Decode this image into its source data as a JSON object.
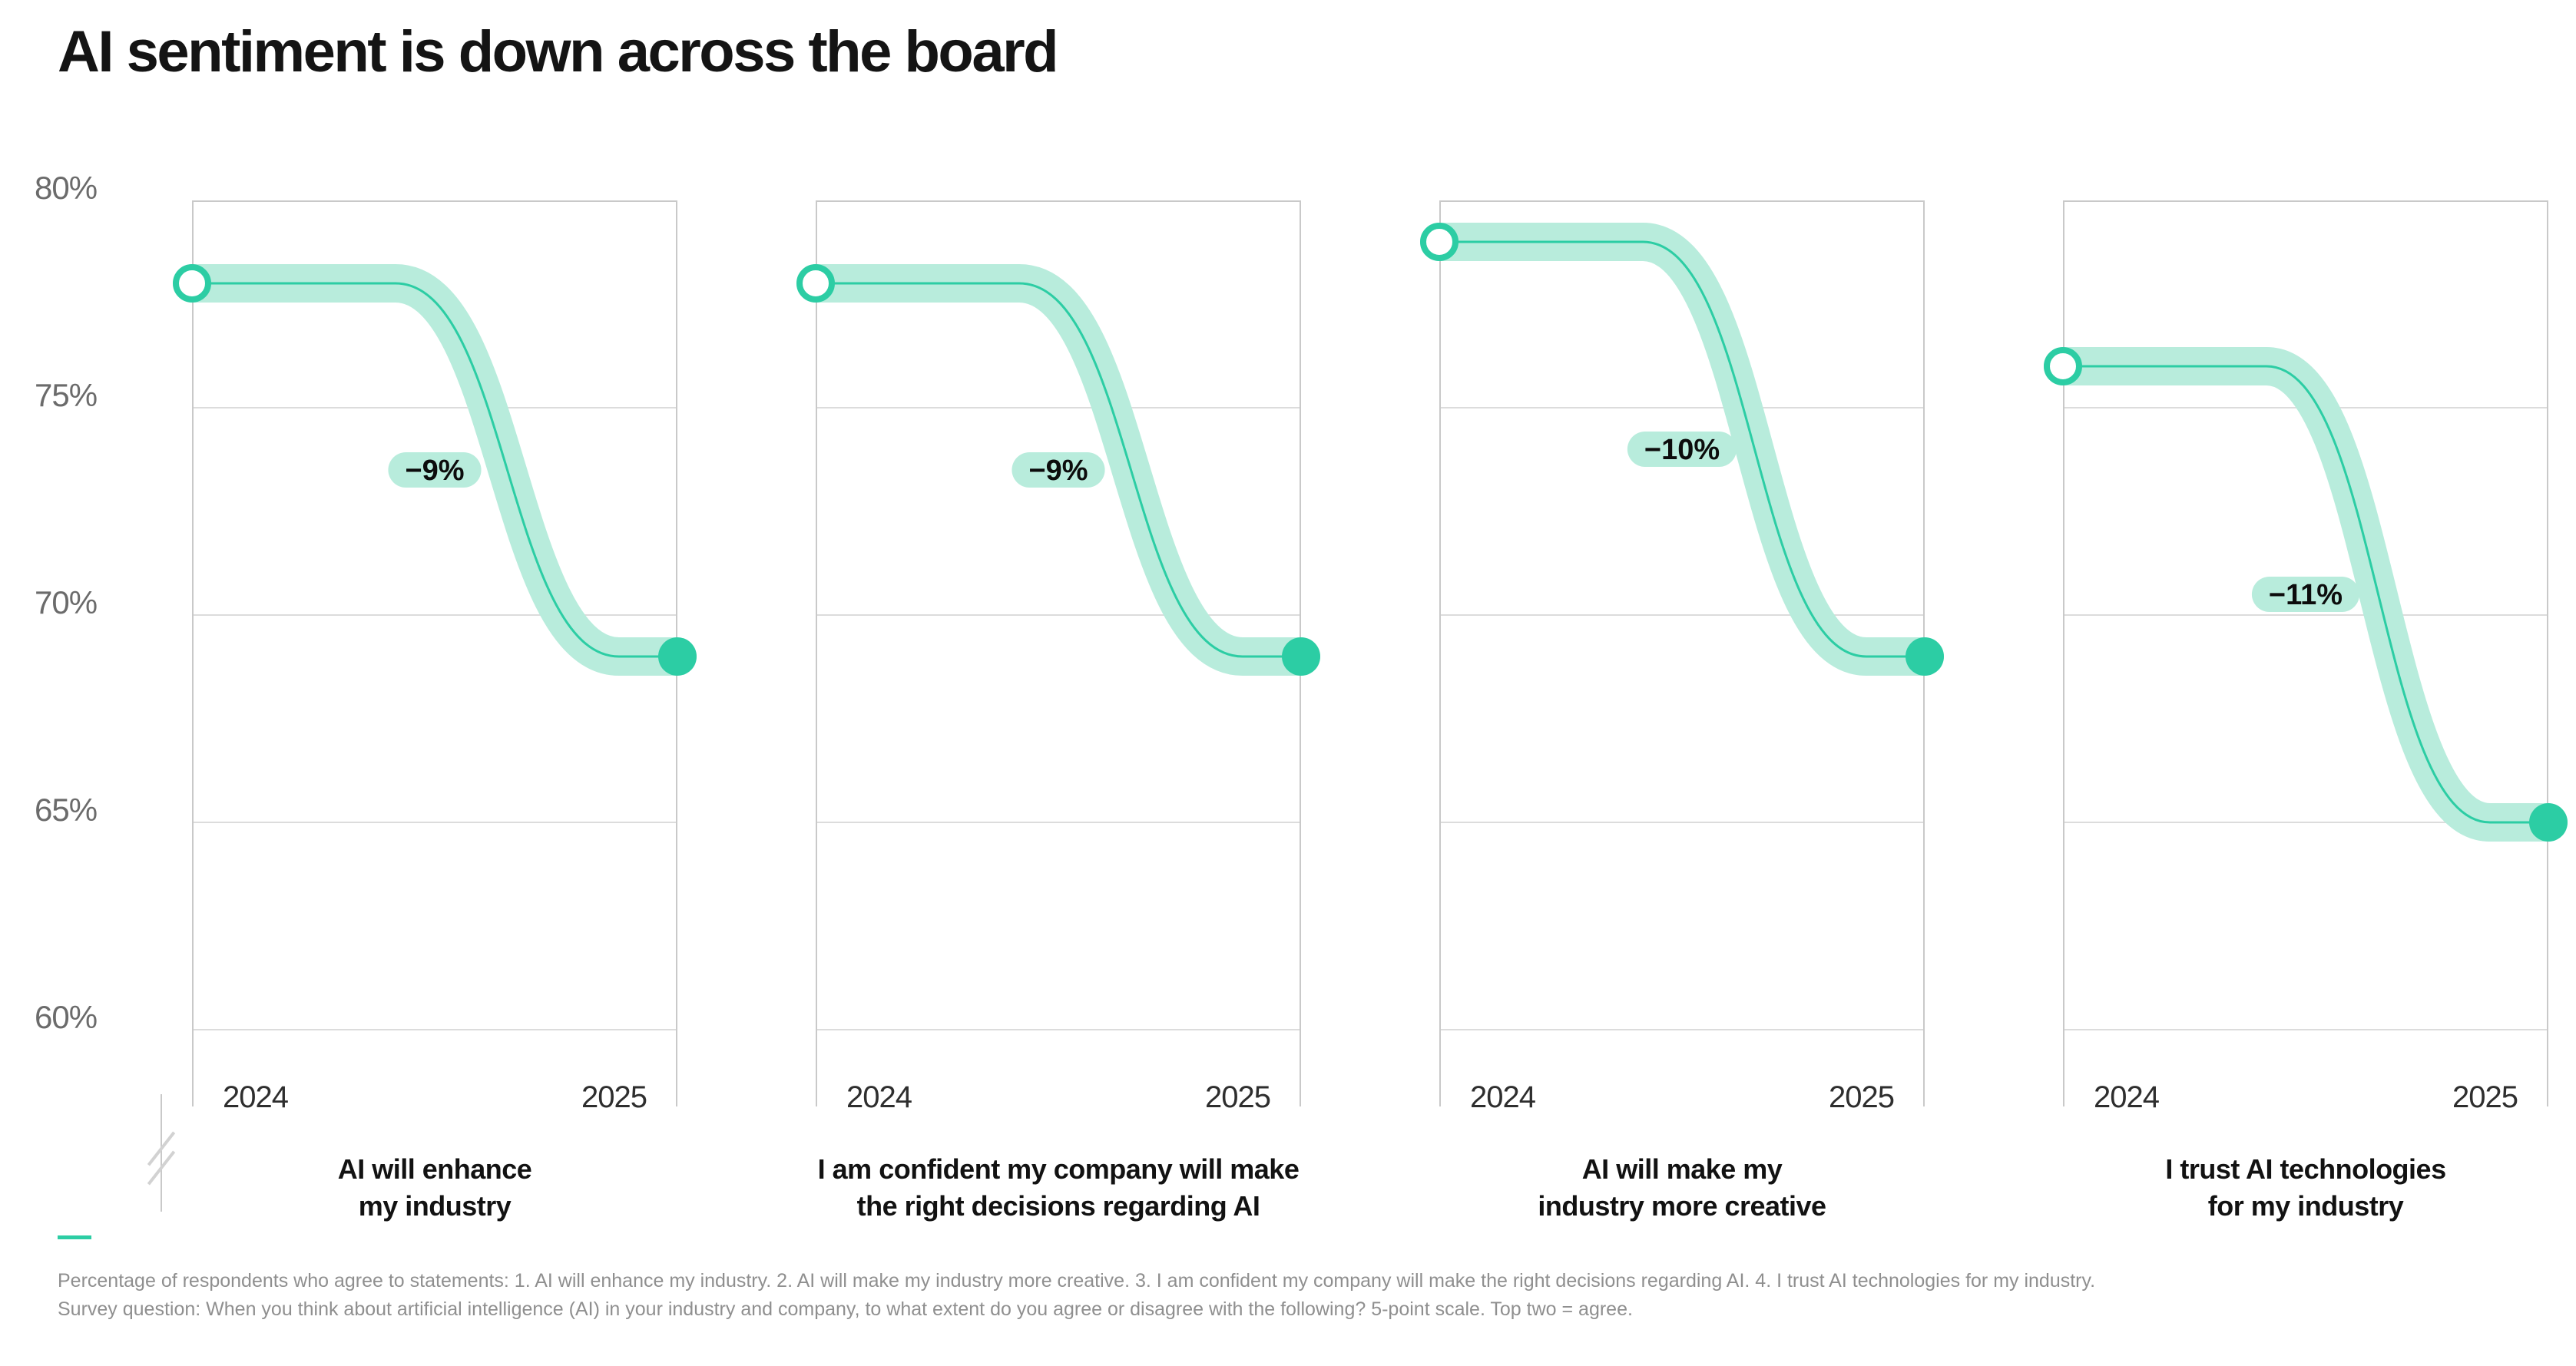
{
  "chart_data": {
    "type": "line",
    "subtype": "slope-small-multiples",
    "title": "AI sentiment is down across the board",
    "x_labels": [
      "2024",
      "2025"
    ],
    "y_axis": {
      "min": 60,
      "max": 80,
      "unit": "%",
      "ticks": [
        "80%",
        "75%",
        "70%",
        "65%",
        "60%"
      ],
      "tick_values": [
        80,
        75,
        70,
        65,
        60
      ],
      "grid": true
    },
    "legend": "none",
    "charts": [
      {
        "statement": "AI will enhance\nmy industry",
        "start": 78,
        "end": 69,
        "change": "−9%"
      },
      {
        "statement": "I am confident my company will make\nthe right decisions regarding AI",
        "start": 78,
        "end": 69,
        "change": "−9%"
      },
      {
        "statement": "AI will make my\nindustry more creative",
        "start": 79,
        "end": 69,
        "change": "−10%"
      },
      {
        "statement": "I trust AI technologies\nfor my industry",
        "start": 76,
        "end": 65,
        "change": "−11%"
      }
    ]
  },
  "colors": {
    "accent": "#2ccda4",
    "band": "#b8ecdc",
    "grid": "#dcdcdc",
    "border": "#c9c9c9",
    "pill_text": "#0c0c0c"
  },
  "footnote": {
    "line1": "Percentage of respondents who agree to statements: 1. AI will enhance my industry. 2. AI will make my industry more creative. 3. I am confident my company will make the right decisions regarding AI. 4. I trust AI technologies for my industry.",
    "line2": "Survey question: When you think about artificial intelligence (AI) in your industry and company, to what extent do you agree or disagree with the following? 5-point scale. Top two = agree."
  }
}
